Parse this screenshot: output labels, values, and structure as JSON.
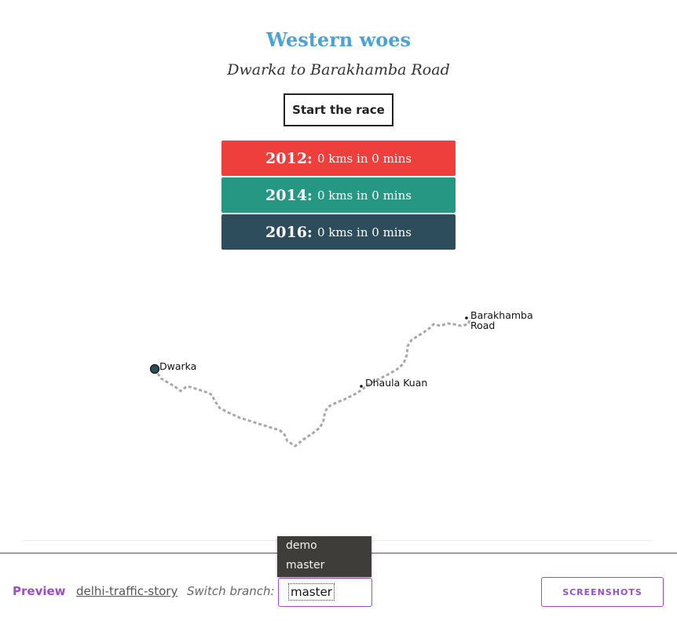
{
  "story": {
    "title": "Western woes",
    "subtitle": "Dwarka to Barakhamba Road",
    "start_button": "Start the race"
  },
  "results": [
    {
      "year": "2012:",
      "detail": "0 kms in 0 mins",
      "color": "#ee3f3d"
    },
    {
      "year": "2014:",
      "detail": "0 kms in 0 mins",
      "color": "#259782"
    },
    {
      "year": "2016:",
      "detail": "0 kms in 0 mins",
      "color": "#2d4d5d"
    }
  ],
  "map": {
    "start": "Dwarka",
    "mid": "Dhaula Kuan",
    "end_line1": "Barakhamba",
    "end_line2": "Road",
    "route_color": "#a8a8a8"
  },
  "footer": {
    "preview": "Preview",
    "repo": "delhi-traffic-story",
    "switch_label": "Switch branch:",
    "branch_value": "master",
    "branch_options": [
      "demo",
      "master"
    ],
    "screenshots": "SCREENSHOTS"
  }
}
